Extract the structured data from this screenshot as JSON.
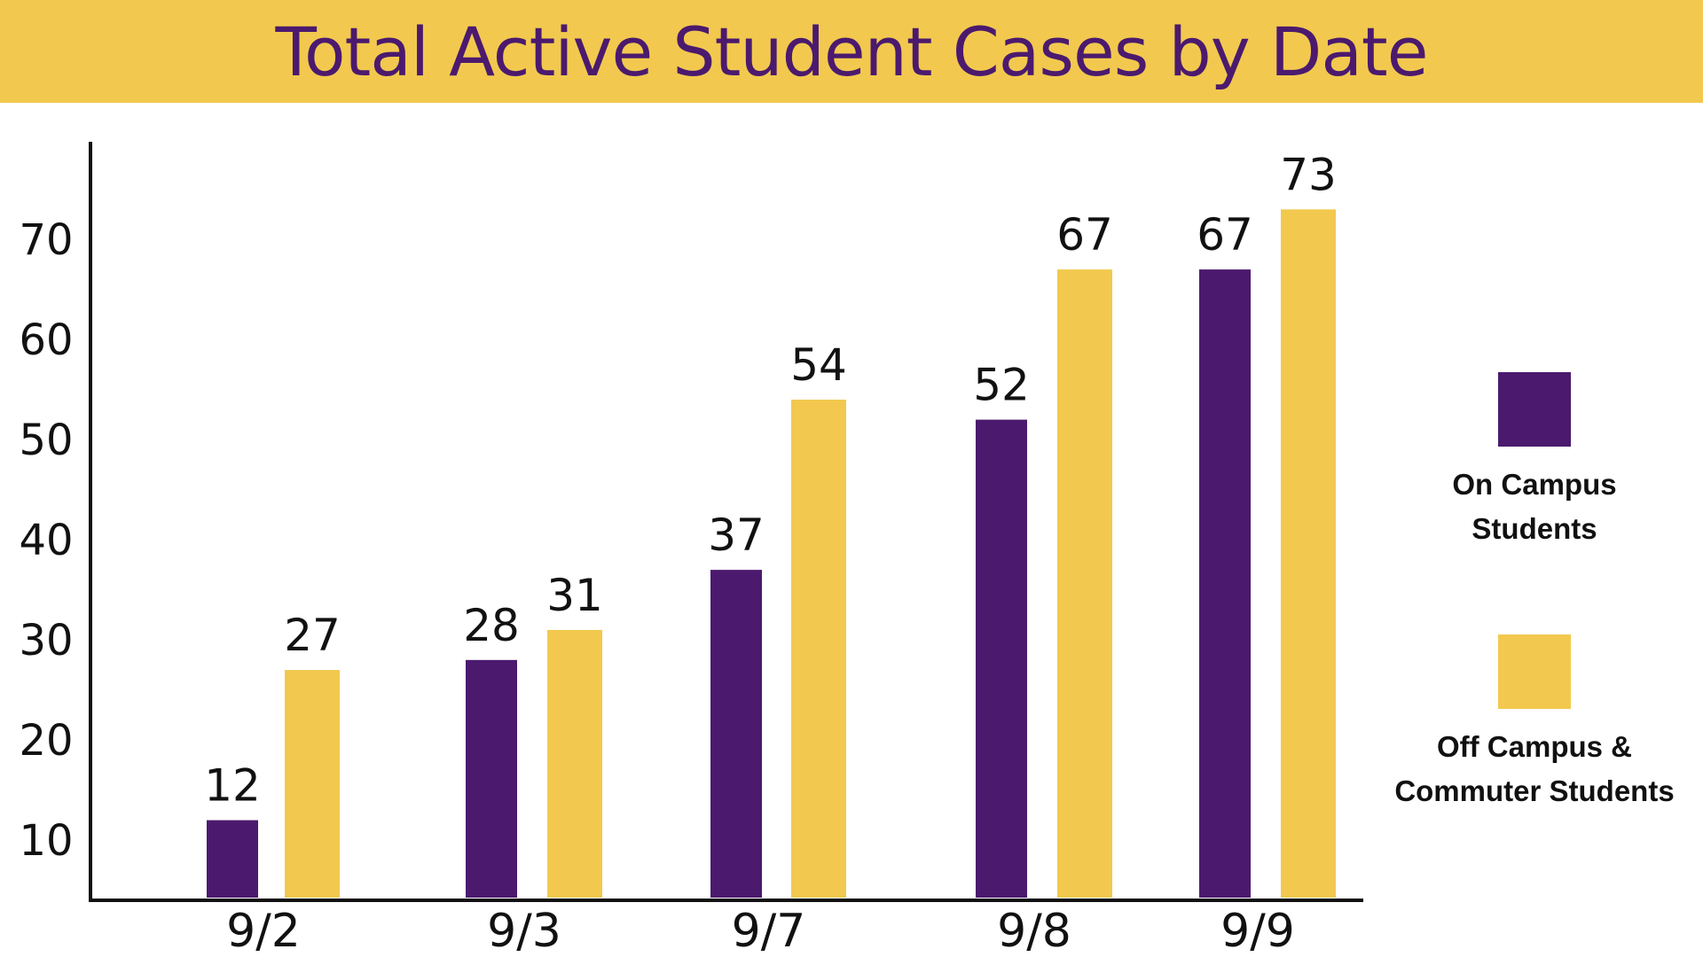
{
  "title": "Total Active Student Cases by Date",
  "colors": {
    "on_campus": "#4b1a6e",
    "off_campus": "#f2c94e",
    "title_bg": "#f2c94e",
    "title_text": "#4b1a6e"
  },
  "legend": [
    {
      "label": "On Campus\nStudents",
      "color": "#4b1a6e"
    },
    {
      "label": "Off Campus &\nCommuter Students",
      "color": "#f2c94e"
    }
  ],
  "chart_data": {
    "type": "bar",
    "title": "Total Active Student Cases by Date",
    "xlabel": "",
    "ylabel": "",
    "categories": [
      "9/2",
      "9/3",
      "9/7",
      "9/8",
      "9/9"
    ],
    "series": [
      {
        "name": "On Campus Students",
        "values": [
          12,
          28,
          37,
          52,
          67
        ]
      },
      {
        "name": "Off Campus & Commuter Students",
        "values": [
          27,
          31,
          54,
          67,
          73
        ]
      }
    ],
    "yticks": [
      10,
      20,
      30,
      40,
      50,
      60,
      70
    ],
    "ylim": [
      4,
      80
    ],
    "grid": false,
    "legend_position": "right"
  }
}
